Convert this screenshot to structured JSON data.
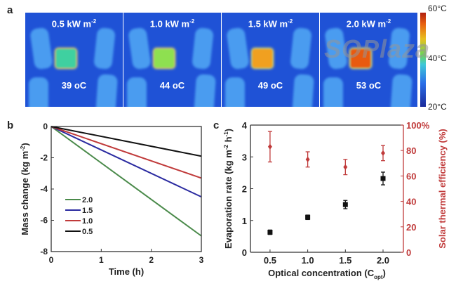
{
  "panel_labels": {
    "a": "a",
    "b": "b",
    "c": "c"
  },
  "thermal_images": [
    {
      "intensity": "0.5 kW m",
      "exp": "-2",
      "temperature": "39 ",
      "unit": "oC",
      "spot_color": "#3fd0a0"
    },
    {
      "intensity": "1.0 kW m",
      "exp": "-2",
      "temperature": "44 ",
      "unit": "oC",
      "spot_color": "#8ee050"
    },
    {
      "intensity": "1.5 kW m",
      "exp": "-2",
      "temperature": "49 ",
      "unit": "oC",
      "spot_color": "#f0a020"
    },
    {
      "intensity": "2.0 kW m",
      "exp": "-2",
      "temperature": "53 ",
      "unit": "oC",
      "spot_color": "#e85a10"
    }
  ],
  "colorbar": {
    "max_label": "60°C",
    "mid_label": "40°C",
    "min_label": "20°C"
  },
  "watermark": "SOPlaza",
  "chart_data": [
    {
      "type": "line",
      "panel": "b",
      "xlabel": "Time (h)",
      "ylabel": "Mass change (kg m",
      "ylabel_exp": "-2",
      "ylabel_end": ")",
      "xlim": [
        0,
        3
      ],
      "ylim": [
        -8,
        0
      ],
      "xticks": [
        "0",
        "1",
        "2",
        "3"
      ],
      "yticks": [
        "0",
        "-2",
        "-4",
        "-6",
        "-8"
      ],
      "legend_position": "lower-left",
      "series": [
        {
          "name": "2.0",
          "color": "#4a8a4a",
          "x": [
            0,
            3
          ],
          "y": [
            0,
            -7.0
          ]
        },
        {
          "name": "1.5",
          "color": "#2a2aa0",
          "x": [
            0,
            3
          ],
          "y": [
            0,
            -4.5
          ]
        },
        {
          "name": "1.0",
          "color": "#c03a3a",
          "x": [
            0,
            3
          ],
          "y": [
            0,
            -3.3
          ]
        },
        {
          "name": "0.5",
          "color": "#111111",
          "x": [
            0,
            3
          ],
          "y": [
            0,
            -1.9
          ]
        }
      ]
    },
    {
      "type": "scatter",
      "panel": "c",
      "xlabel": "Optical concentration (C",
      "xlabel_sub": "opt",
      "xlabel_end": ")",
      "ylabel_left": "Evaporation rate (kg m",
      "ylabel_left_exp1": "-2",
      "ylabel_left_mid": " h",
      "ylabel_left_exp2": "-1",
      "ylabel_left_end": ")",
      "ylabel_right": "Solar thermal efficiency (%)",
      "xlim": [
        0.24,
        2.27
      ],
      "ylim_left": [
        0,
        4
      ],
      "ylim_right": [
        0,
        100
      ],
      "xticks": [
        "0.5",
        "1.0",
        "1.5",
        "2.0"
      ],
      "yticks_left": [
        "0",
        "1",
        "2",
        "3",
        "4"
      ],
      "yticks_right": [
        "0",
        "20",
        "40",
        "60",
        "80",
        "100%"
      ],
      "right_axis_color": "#c03a3a",
      "series": [
        {
          "axis": "left",
          "color": "#111111",
          "marker": "square",
          "x": [
            0.5,
            1.0,
            1.5,
            2.0
          ],
          "y": [
            0.63,
            1.1,
            1.5,
            2.32
          ],
          "err": [
            0.07,
            0.07,
            0.13,
            0.2
          ]
        },
        {
          "axis": "right",
          "color": "#c03a3a",
          "marker": "diamond",
          "x": [
            0.5,
            1.0,
            1.5,
            2.0
          ],
          "y": [
            83,
            73,
            67,
            78
          ],
          "err": [
            12,
            6,
            6,
            6
          ]
        }
      ]
    }
  ]
}
